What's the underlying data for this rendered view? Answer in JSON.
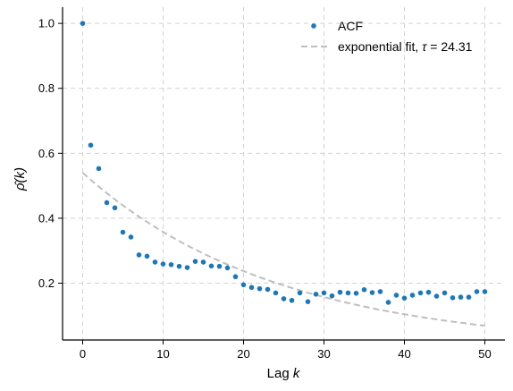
{
  "chart_data": {
    "type": "scatter",
    "xlabel_text": "Lag ",
    "xlabel_var": "k",
    "ylabel_text": "ρ̂(k)",
    "xlim": [
      -2.5,
      52.5
    ],
    "ylim": [
      0.025,
      1.05
    ],
    "xticks": [
      0,
      10,
      20,
      30,
      40,
      50
    ],
    "yticks": [
      0.2,
      0.4,
      0.6,
      0.8,
      1.0
    ],
    "ytick_labels": [
      "0.2",
      "0.4",
      "0.6",
      "0.8",
      "1.0"
    ],
    "grid": true,
    "legend_placement": "upper-right",
    "series": [
      {
        "name": "ACF",
        "kind": "points",
        "color": "#1f77b4",
        "x": [
          0,
          1,
          2,
          3,
          4,
          5,
          6,
          7,
          8,
          9,
          10,
          11,
          12,
          13,
          14,
          15,
          16,
          17,
          18,
          19,
          20,
          21,
          22,
          23,
          24,
          25,
          26,
          27,
          28,
          29,
          30,
          31,
          32,
          33,
          34,
          35,
          36,
          37,
          38,
          39,
          40,
          41,
          42,
          43,
          44,
          45,
          46,
          47,
          48,
          49,
          50
        ],
        "y": [
          1.0,
          0.625,
          0.553,
          0.448,
          0.432,
          0.357,
          0.342,
          0.287,
          0.283,
          0.265,
          0.259,
          0.257,
          0.252,
          0.248,
          0.267,
          0.265,
          0.253,
          0.252,
          0.247,
          0.22,
          0.195,
          0.187,
          0.183,
          0.181,
          0.17,
          0.152,
          0.147,
          0.17,
          0.143,
          0.166,
          0.17,
          0.161,
          0.172,
          0.17,
          0.169,
          0.18,
          0.171,
          0.174,
          0.141,
          0.163,
          0.154,
          0.163,
          0.17,
          0.172,
          0.16,
          0.17,
          0.155,
          0.157,
          0.157,
          0.174,
          0.174
        ]
      },
      {
        "name_prefix": "exponential fit, ",
        "name_symbol": "τ",
        "name_suffix": " =  24.31",
        "kind": "dashed-line",
        "color": "#bfbfbf",
        "tau": 24.31,
        "amplitude": 0.54,
        "x_start": 0,
        "x_end": 50
      }
    ]
  }
}
